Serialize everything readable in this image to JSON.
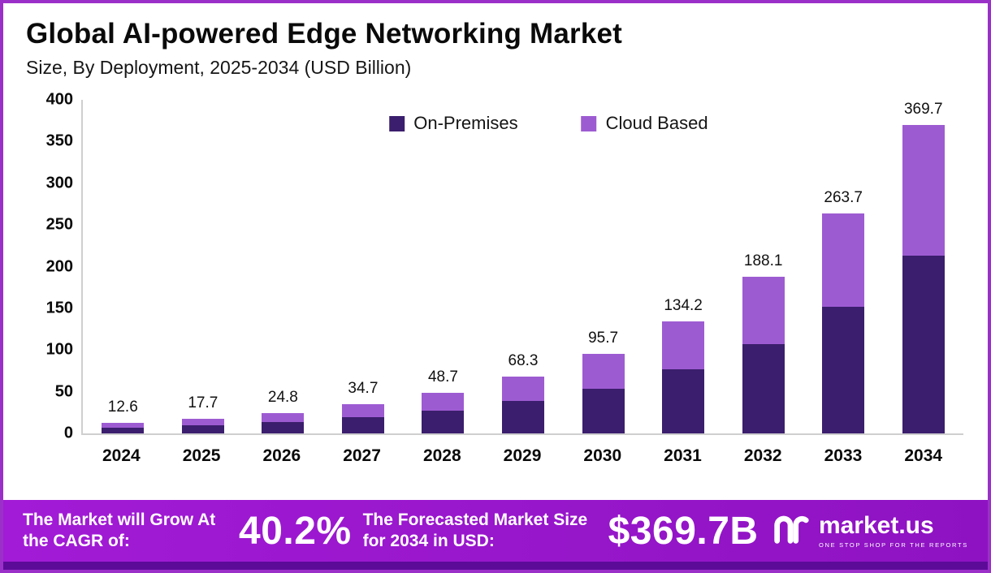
{
  "header": {
    "title": "Global AI-powered Edge Networking Market",
    "subtitle": "Size, By Deployment, 2025-2034 (USD Billion)"
  },
  "chart_data": {
    "type": "bar",
    "stacked": true,
    "title": "Global AI-powered Edge Networking Market",
    "subtitle": "Size, By Deployment, 2025-2034 (USD Billion)",
    "unit": "USD Billion",
    "categories": [
      "2024",
      "2025",
      "2026",
      "2027",
      "2028",
      "2029",
      "2030",
      "2031",
      "2032",
      "2033",
      "2034"
    ],
    "series": [
      {
        "name": "On-Premises",
        "color": "#3b1e6d",
        "values": [
          7.2,
          10.2,
          13.5,
          19.5,
          27.5,
          38.5,
          54.0,
          76.5,
          107.5,
          151.5,
          213.0
        ]
      },
      {
        "name": "Cloud Based",
        "color": "#9d5bd2",
        "values": [
          5.4,
          7.5,
          11.3,
          15.2,
          21.2,
          29.8,
          41.7,
          57.7,
          80.6,
          112.2,
          156.7
        ]
      }
    ],
    "totals": [
      12.6,
      17.7,
      24.8,
      34.7,
      48.7,
      68.3,
      95.7,
      134.2,
      188.1,
      263.7,
      369.7
    ],
    "ylim": [
      0,
      400
    ],
    "yticks": [
      0,
      50,
      100,
      150,
      200,
      250,
      300,
      350,
      400
    ],
    "legend_position": "top-center",
    "grid": false
  },
  "footer": {
    "cagr_label": "The Market will Grow At the CAGR of:",
    "cagr_value": "40.2%",
    "forecast_label": "The Forecasted Market Size for 2034 in USD:",
    "forecast_value": "$369.7B",
    "brand": "market.us",
    "brand_tagline": "ONE STOP SHOP FOR THE REPORTS"
  },
  "colors": {
    "on_premises": "#3b1e6d",
    "cloud_based": "#9d5bd2",
    "footer_bg": "#9a1bcd",
    "footer_strip": "#5c0b99",
    "border": "#9b30c9",
    "axis_line": "#cfcfcf"
  }
}
